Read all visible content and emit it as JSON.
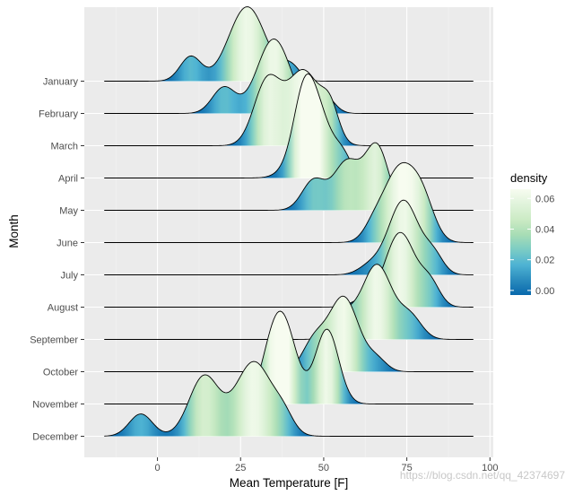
{
  "chart_data": {
    "type": "ridgeline",
    "title": "",
    "xlabel": "Mean Temperature [F]",
    "ylabel": "Month",
    "xlim": [
      -22,
      101
    ],
    "xticks": [
      0,
      25,
      50,
      75,
      100
    ],
    "x_range_drawn": [
      -16,
      95
    ],
    "categories_top_to_bottom": [
      "January",
      "February",
      "March",
      "April",
      "May",
      "June",
      "July",
      "August",
      "September",
      "October",
      "November",
      "December"
    ],
    "series": [
      {
        "name": "January",
        "components": [
          [
            10,
            3.2,
            0.33
          ],
          [
            27,
            5.5,
            1.0
          ],
          [
            40,
            2.8,
            0.2
          ]
        ]
      },
      {
        "name": "February",
        "components": [
          [
            20,
            3.5,
            0.35
          ],
          [
            35,
            5.0,
            1.0
          ],
          [
            50,
            3.0,
            0.25
          ]
        ]
      },
      {
        "name": "March",
        "components": [
          [
            33,
            4.0,
            0.85
          ],
          [
            44,
            5.0,
            1.0
          ],
          [
            52,
            2.6,
            0.4
          ]
        ]
      },
      {
        "name": "April",
        "components": [
          [
            44,
            3.0,
            0.5
          ],
          [
            47,
            5.0,
            1.0
          ],
          [
            56,
            2.5,
            0.2
          ]
        ]
      },
      {
        "name": "May",
        "components": [
          [
            47,
            3.5,
            0.4
          ],
          [
            57,
            4.0,
            0.65
          ],
          [
            66,
            3.5,
            0.85
          ]
        ]
      },
      {
        "name": "June",
        "components": [
          [
            65,
            3.0,
            0.15
          ],
          [
            73,
            5.0,
            1.0
          ],
          [
            80,
            3.5,
            0.4
          ]
        ]
      },
      {
        "name": "July",
        "components": [
          [
            64,
            3.5,
            0.12
          ],
          [
            74,
            4.5,
            1.0
          ],
          [
            83,
            3.0,
            0.25
          ]
        ]
      },
      {
        "name": "August",
        "components": [
          [
            62,
            3.5,
            0.1
          ],
          [
            73,
            4.5,
            1.0
          ],
          [
            82,
            3.0,
            0.3
          ]
        ]
      },
      {
        "name": "September",
        "components": [
          [
            56,
            3.5,
            0.3
          ],
          [
            66,
            4.5,
            1.0
          ],
          [
            76,
            3.5,
            0.3
          ]
        ]
      },
      {
        "name": "October",
        "components": [
          [
            47,
            3.5,
            0.38
          ],
          [
            56,
            4.5,
            1.0
          ],
          [
            66,
            3.0,
            0.15
          ]
        ]
      },
      {
        "name": "November",
        "components": [
          [
            34,
            3.5,
            0.4
          ],
          [
            38,
            4.0,
            1.0
          ],
          [
            51,
            3.5,
            1.0
          ]
        ]
      },
      {
        "name": "December",
        "components": [
          [
            -5,
            3.5,
            0.3
          ],
          [
            14,
            4.5,
            0.8
          ],
          [
            29,
            5.5,
            1.0
          ],
          [
            38,
            3.0,
            0.2
          ]
        ]
      }
    ],
    "legend": {
      "title": "density",
      "position": "right",
      "labels": [
        "0.06",
        "0.04",
        "0.02",
        "0.00"
      ],
      "values": [
        0.06,
        0.04,
        0.02,
        0.0
      ],
      "range": [
        -0.003,
        0.066
      ],
      "colors": [
        "#0868ac",
        "#2b8cbe",
        "#4eb3d3",
        "#7bccc4",
        "#a8ddb5",
        "#ccebc5",
        "#e0f3db",
        "#f7fcf0"
      ]
    }
  },
  "colors": {
    "panel": "#ebebeb",
    "grid_major": "#ffffff",
    "grid_minor": "#f4f4f4",
    "outline": "#000000"
  },
  "watermark": "https://blog.csdn.net/qq_42374697"
}
